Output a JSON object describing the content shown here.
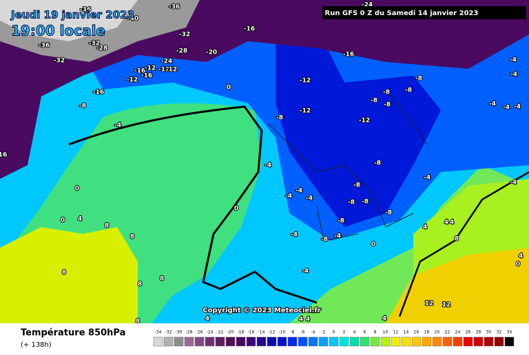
{
  "header": {
    "date": "Jeudi 19 janvier 2023",
    "time": "19:00 locale",
    "run": "Run GFS 0 Z du Samedi 14 janvier 2023"
  },
  "footer": {
    "title": "Température 850hPa",
    "lead": "(+ 138h)",
    "copyright": "Copyright © 2023 Meteociel.fr"
  },
  "legend": {
    "ticks": [
      -34,
      -32,
      -30,
      -28,
      -26,
      -24,
      -22,
      -20,
      -18,
      -16,
      -14,
      -12,
      -10,
      -8,
      -6,
      -4,
      -2,
      0,
      2,
      4,
      6,
      8,
      10,
      12,
      14,
      16,
      18,
      20,
      22,
      24,
      26,
      28,
      30,
      32,
      34
    ],
    "colors": [
      "#d8d8d8",
      "#b0b0b0",
      "#8c8c8c",
      "#9a6a9a",
      "#844a84",
      "#703070",
      "#601c60",
      "#521058",
      "#460a66",
      "#3a0878",
      "#22088e",
      "#0a0aa8",
      "#0010cc",
      "#0028f0",
      "#0050ff",
      "#0078ff",
      "#00a0ff",
      "#00c8ff",
      "#00e4e0",
      "#00e0a8",
      "#30e070",
      "#78e840",
      "#b8f010",
      "#f0f000",
      "#ffe000",
      "#ffc800",
      "#ffa800",
      "#ff8800",
      "#ff6400",
      "#ff3c00",
      "#f00000",
      "#d00000",
      "#b00000",
      "#900000",
      "#000000"
    ]
  },
  "map_labels": [
    "-36",
    "-36",
    "-40",
    "-24",
    "-32",
    "-32",
    "-28",
    "-36",
    "-28",
    "-16",
    "-20",
    "-16",
    "-32",
    "-24",
    "-16",
    "-12",
    "-12",
    "-12",
    "-16",
    "-12",
    "-16",
    "-12",
    "-8",
    "-8",
    "-8",
    "-8",
    "-8",
    "-4",
    "-4",
    "-4",
    "-4",
    "-4",
    "-12",
    "-12",
    "-8",
    "-8",
    "0",
    "-8",
    "-4",
    "16",
    "-4",
    "0",
    "-4",
    "-4",
    "-4",
    "-8",
    "-8",
    "-8",
    "-4",
    "-4",
    "-8",
    "-8",
    "0",
    "0",
    "4",
    "8",
    "8",
    "-4",
    "-8",
    "-4",
    "0",
    "4",
    "4",
    "4",
    "8",
    "8",
    "8",
    "8",
    "-4",
    "0",
    "4",
    "12",
    "12",
    "8",
    "4",
    "4",
    "4",
    "4"
  ]
}
